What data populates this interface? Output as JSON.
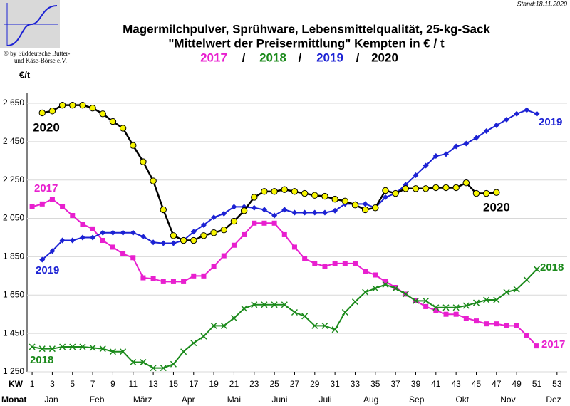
{
  "chart_data": {
    "type": "line",
    "title": "Magermilchpulver, Sprühware, Lebensmittelqualität, 25-kg-Sack",
    "subtitle": "\"Mittelwert der Preisermittlung\" Kempten in € / t",
    "stand": "Stand:18.11.2020",
    "logo_text": [
      "© by Süddeutsche Butter-",
      "und Käse-Börse e.V."
    ],
    "y_label": "€/t",
    "x_label": "KW",
    "month_label": "Monat",
    "legend_separator": "/",
    "months": [
      "Jan",
      "Feb",
      "März",
      "Apr",
      "Mai",
      "Juni",
      "Juli",
      "Aug",
      "Sep",
      "Okt",
      "Nov",
      "Dez"
    ],
    "x": [
      1,
      2,
      3,
      4,
      5,
      6,
      7,
      8,
      9,
      10,
      11,
      12,
      13,
      14,
      15,
      16,
      17,
      18,
      19,
      20,
      21,
      22,
      23,
      24,
      25,
      26,
      27,
      28,
      29,
      30,
      31,
      32,
      33,
      34,
      35,
      36,
      37,
      38,
      39,
      40,
      41,
      42,
      43,
      44,
      45,
      46,
      47,
      48,
      49,
      50,
      51,
      52,
      53
    ],
    "xlim": [
      0.5,
      54
    ],
    "xticks": [
      1,
      3,
      5,
      7,
      9,
      11,
      13,
      15,
      17,
      19,
      21,
      23,
      25,
      27,
      29,
      31,
      33,
      35,
      37,
      39,
      41,
      43,
      45,
      47,
      49,
      51,
      53
    ],
    "ylim": [
      1250,
      2700
    ],
    "yticks": [
      {
        "value": 2650,
        "label": "2 650"
      },
      {
        "value": 2450,
        "label": "2 450"
      },
      {
        "value": 2250,
        "label": "2 250"
      },
      {
        "value": 2050,
        "label": "2 050"
      },
      {
        "value": 1850,
        "label": "1 850"
      },
      {
        "value": 1650,
        "label": "1 650"
      },
      {
        "value": 1450,
        "label": "1 450"
      },
      {
        "value": 1250,
        "label": "1 250"
      }
    ],
    "grid": true,
    "series": [
      {
        "name": "2017",
        "color": "#e81fcf",
        "marker": "square",
        "values": [
          2110,
          2125,
          2150,
          2110,
          2065,
          2020,
          1995,
          1935,
          1900,
          1865,
          1845,
          1740,
          1735,
          1720,
          1720,
          1720,
          1750,
          1750,
          1800,
          1855,
          1910,
          1965,
          2025,
          2025,
          2025,
          1965,
          1900,
          1840,
          1815,
          1800,
          1815,
          1815,
          1815,
          1775,
          1755,
          1720,
          1690,
          1655,
          1620,
          1590,
          1570,
          1550,
          1550,
          1530,
          1515,
          1500,
          1500,
          1490,
          1490,
          1440,
          1385,
          null,
          null
        ]
      },
      {
        "name": "2018",
        "color": "#1b8a1b",
        "marker": "cross",
        "values": [
          1380,
          1370,
          1370,
          1380,
          1380,
          1380,
          1375,
          1370,
          1355,
          1355,
          1300,
          1300,
          1270,
          1270,
          1290,
          1355,
          1400,
          1435,
          1490,
          1490,
          1530,
          1580,
          1600,
          1600,
          1600,
          1600,
          1560,
          1540,
          1490,
          1490,
          1470,
          1560,
          1615,
          1665,
          1685,
          1705,
          1685,
          1655,
          1620,
          1620,
          1585,
          1585,
          1585,
          1595,
          1610,
          1625,
          1625,
          1665,
          1680,
          1730,
          1785,
          null,
          null
        ]
      },
      {
        "name": "2019",
        "color": "#1c22d4",
        "marker": "diamond",
        "values": [
          null,
          1835,
          1880,
          1935,
          1935,
          1950,
          1950,
          1975,
          1975,
          1975,
          1975,
          1955,
          1925,
          1920,
          1920,
          1935,
          1980,
          2015,
          2055,
          2075,
          2110,
          2110,
          2105,
          2095,
          2065,
          2095,
          2080,
          2080,
          2080,
          2080,
          2090,
          2125,
          2125,
          2125,
          2105,
          2160,
          2180,
          2225,
          2275,
          2325,
          2375,
          2385,
          2425,
          2440,
          2470,
          2505,
          2535,
          2565,
          2595,
          2615,
          2595,
          null,
          null
        ]
      },
      {
        "name": "2020",
        "color": "#000000",
        "marker": "circle",
        "marker_fill": "#f7f500",
        "values": [
          null,
          2600,
          2610,
          2640,
          2640,
          2640,
          2625,
          2595,
          2555,
          2520,
          2430,
          2345,
          2245,
          2095,
          1960,
          1935,
          1935,
          1960,
          1975,
          1990,
          2035,
          2090,
          2160,
          2190,
          2190,
          2200,
          2190,
          2180,
          2170,
          2165,
          2150,
          2140,
          2120,
          2095,
          2105,
          2195,
          2180,
          2205,
          2205,
          2205,
          2210,
          2210,
          2210,
          2235,
          2180,
          2180,
          2185,
          null,
          null,
          null,
          null,
          null,
          null
        ]
      }
    ]
  }
}
